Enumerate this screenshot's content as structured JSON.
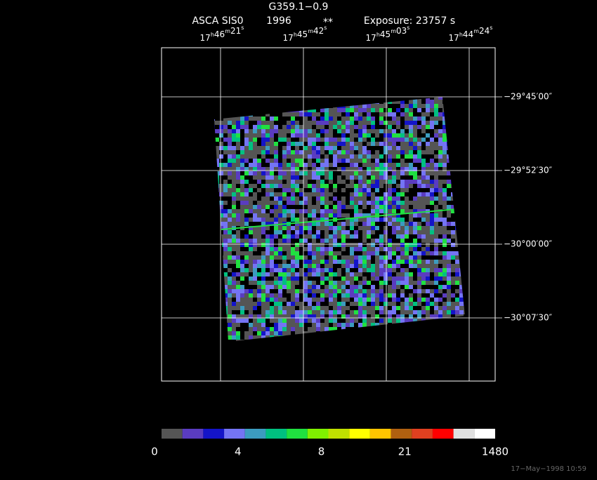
{
  "header": {
    "title": "G359.1−0.9",
    "instrument": "ASCA SIS0",
    "year": "1996",
    "flag": "**",
    "exposure": "Exposure: 23757 s"
  },
  "ra_units": [
    "h",
    "m",
    "s"
  ],
  "ra_labels": [
    {
      "hours": "17",
      "minutes": "46",
      "seconds": "21"
    },
    {
      "hours": "17",
      "minutes": "45",
      "seconds": "42"
    },
    {
      "hours": "17",
      "minutes": "45",
      "seconds": "03"
    },
    {
      "hours": "17",
      "minutes": "44",
      "seconds": "24"
    }
  ],
  "dec_labels": [
    "−29°45′00″",
    "−29°52′30″",
    "−30°00′00″",
    "−30°07′30″"
  ],
  "colorbar": {
    "ticks": [
      0,
      4,
      8,
      21,
      1480
    ],
    "colors": [
      "#555555",
      "#5a3cc0",
      "#1414c8",
      "#7474f4",
      "#3c9cc0",
      "#00c080",
      "#20e040",
      "#80f000",
      "#c0e000",
      "#ffff00",
      "#ffc400",
      "#b06010",
      "#e04020",
      "#ff0000",
      "#e0e0e0",
      "#ffffff"
    ]
  },
  "footer": "17−May−1998 10:59"
}
